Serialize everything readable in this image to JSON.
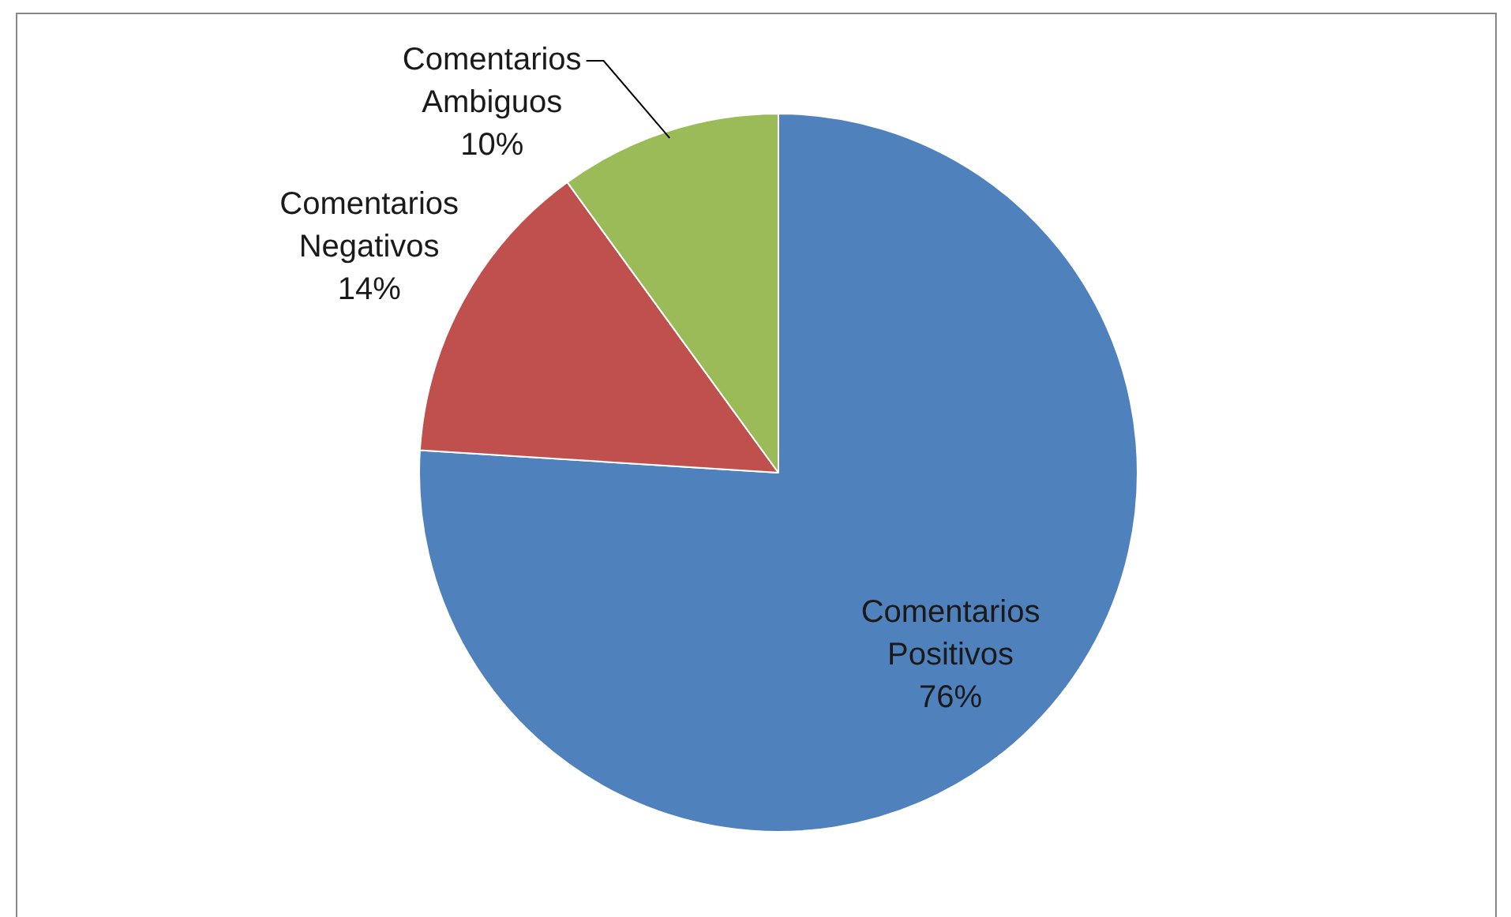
{
  "chart_data": {
    "type": "pie",
    "categories": [
      "Comentarios Positivos",
      "Comentarios Negativos",
      "Comentarios Ambiguos"
    ],
    "values": [
      76,
      14,
      10
    ],
    "colors": [
      "#4f81bd",
      "#c0504d",
      "#9bbb59"
    ],
    "value_labels": [
      "76%",
      "14%",
      "10%"
    ],
    "legend": false
  }
}
